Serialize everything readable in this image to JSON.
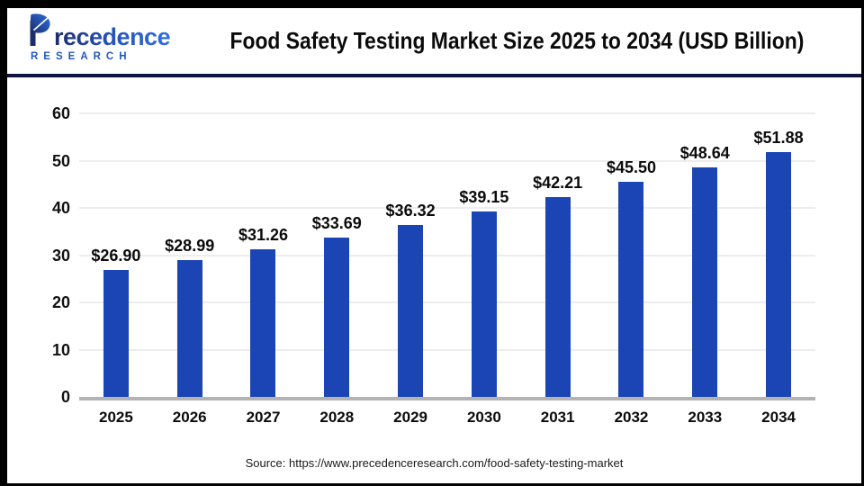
{
  "header": {
    "logo": {
      "brand": "Precedence",
      "brand_rest": "recedence",
      "subtitle": "RESEARCH"
    },
    "title": "Food Safety Testing Market Size 2025 to 2034 (USD Billion)"
  },
  "chart_data": {
    "type": "bar",
    "title": "Food Safety Testing Market Size 2025 to 2034 (USD Billion)",
    "categories": [
      "2025",
      "2026",
      "2027",
      "2028",
      "2029",
      "2030",
      "2031",
      "2032",
      "2033",
      "2034"
    ],
    "values": [
      26.9,
      28.99,
      31.26,
      33.69,
      36.32,
      39.15,
      42.21,
      45.5,
      48.64,
      51.88
    ],
    "value_labels": [
      "$26.90",
      "$28.99",
      "$31.26",
      "$33.69",
      "$36.32",
      "$39.15",
      "$42.21",
      "$45.50",
      "$48.64",
      "$51.88"
    ],
    "unit": "USD Billion",
    "xlabel": "",
    "ylabel": "",
    "ylim": [
      0,
      60
    ],
    "yticks": [
      0,
      10,
      20,
      30,
      40,
      50,
      60
    ],
    "grid": true,
    "legend": false,
    "bar_color": "#1B45B4"
  },
  "footer": {
    "source": "Source: https://www.precedenceresearch.com/food-safety-testing-market"
  },
  "colors": {
    "bar": "#1B45B4",
    "divider": "#0D1440",
    "gridline": "#EDEDED",
    "baseline": "#B3B3B3",
    "logo_navy": "#1D2D6B",
    "logo_blue": "#2F6FE0",
    "frame": "#000000"
  }
}
